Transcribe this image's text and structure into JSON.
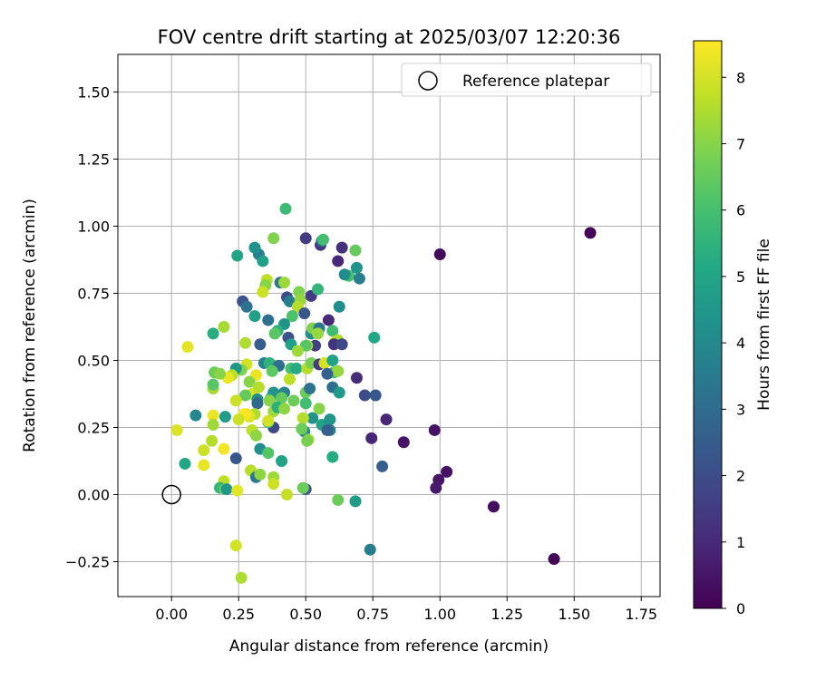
{
  "chart_data": {
    "type": "scatter",
    "title": "FOV centre drift starting at 2025/03/07 12:20:36",
    "xlabel": "Angular distance from reference (arcmin)",
    "ylabel": "Rotation from reference (arcmin)",
    "xlim": [
      -0.2,
      1.82
    ],
    "ylim": [
      -0.38,
      1.64
    ],
    "xticks": [
      0.0,
      0.25,
      0.5,
      0.75,
      1.0,
      1.25,
      1.5,
      1.75
    ],
    "xtick_labels": [
      "0.00",
      "0.25",
      "0.50",
      "0.75",
      "1.00",
      "1.25",
      "1.50",
      "1.75"
    ],
    "yticks": [
      -0.25,
      0.0,
      0.25,
      0.5,
      0.75,
      1.0,
      1.25,
      1.5
    ],
    "ytick_labels": [
      "−0.25",
      "0.00",
      "0.25",
      "0.50",
      "0.75",
      "1.00",
      "1.25",
      "1.50"
    ],
    "grid": true,
    "legend": {
      "position": "upper-right",
      "entries": [
        "Reference platepar"
      ]
    },
    "reference_point": {
      "x": 0.0,
      "y": 0.0,
      "label": "Reference platepar"
    },
    "colorbar": {
      "label": "Hours from first FF file",
      "colormap": "viridis",
      "range": [
        0,
        8.55
      ],
      "ticks": [
        0,
        1,
        2,
        3,
        4,
        5,
        6,
        7,
        8
      ],
      "tick_labels": [
        "0",
        "1",
        "2",
        "3",
        "4",
        "5",
        "6",
        "7",
        "8"
      ]
    },
    "series": [
      {
        "columns": [
          "x",
          "y",
          "hours"
        ],
        "points": [
          [
            1.56,
            0.975,
            0.1
          ],
          [
            1.0,
            0.895,
            0.2
          ],
          [
            1.425,
            -0.24,
            0.1
          ],
          [
            1.2,
            -0.045,
            0.3
          ],
          [
            1.025,
            0.085,
            0.4
          ],
          [
            0.995,
            0.055,
            0.5
          ],
          [
            0.985,
            0.025,
            0.6
          ],
          [
            0.98,
            0.24,
            0.4
          ],
          [
            0.865,
            0.195,
            0.5
          ],
          [
            0.8,
            0.28,
            1.0
          ],
          [
            0.745,
            0.21,
            0.9
          ],
          [
            0.69,
            0.435,
            1.1
          ],
          [
            0.72,
            0.37,
            2.0
          ],
          [
            0.76,
            0.37,
            2.3
          ],
          [
            0.785,
            0.105,
            2.5
          ],
          [
            0.74,
            -0.205,
            3.6
          ],
          [
            0.685,
            -0.025,
            4.7
          ],
          [
            0.62,
            -0.02,
            6.6
          ],
          [
            0.56,
            0.26,
            4.9
          ],
          [
            0.59,
            0.28,
            4.4
          ],
          [
            0.6,
            0.14,
            5.2
          ],
          [
            0.59,
            0.24,
            3.7
          ],
          [
            0.58,
            0.24,
            2.6
          ],
          [
            0.5,
            0.02,
            2.3
          ],
          [
            0.49,
            0.025,
            6.6
          ],
          [
            0.43,
            0.0,
            7.8
          ],
          [
            0.495,
            0.235,
            3.9
          ],
          [
            0.525,
            0.285,
            4.3
          ],
          [
            0.66,
            0.815,
            6.0
          ],
          [
            0.645,
            0.82,
            4.1
          ],
          [
            0.7,
            0.805,
            3.6
          ],
          [
            0.69,
            0.845,
            4.4
          ],
          [
            0.685,
            0.91,
            6.5
          ],
          [
            0.635,
            0.92,
            1.2
          ],
          [
            0.62,
            0.87,
            1.0
          ],
          [
            0.555,
            0.93,
            1.4
          ],
          [
            0.56,
            0.945,
            3.0
          ],
          [
            0.565,
            0.95,
            6.0
          ],
          [
            0.5,
            0.955,
            1.5
          ],
          [
            0.425,
            1.065,
            5.8
          ],
          [
            0.325,
            0.895,
            3.6
          ],
          [
            0.31,
            0.92,
            4.3
          ],
          [
            0.34,
            0.87,
            4.8
          ],
          [
            0.38,
            0.955,
            6.9
          ],
          [
            0.245,
            0.89,
            5.0
          ],
          [
            0.405,
            0.79,
            3.4
          ],
          [
            0.42,
            0.79,
            7.3
          ],
          [
            0.355,
            0.8,
            7.7
          ],
          [
            0.35,
            0.78,
            7.0
          ],
          [
            0.34,
            0.755,
            7.9
          ],
          [
            0.43,
            0.735,
            2.0
          ],
          [
            0.44,
            0.72,
            3.6
          ],
          [
            0.475,
            0.755,
            6.9
          ],
          [
            0.48,
            0.725,
            7.2
          ],
          [
            0.47,
            0.7,
            7.6
          ],
          [
            0.52,
            0.74,
            1.5
          ],
          [
            0.545,
            0.765,
            5.6
          ],
          [
            0.585,
            0.65,
            1.0
          ],
          [
            0.625,
            0.7,
            4.1
          ],
          [
            0.265,
            0.72,
            2.2
          ],
          [
            0.28,
            0.7,
            3.2
          ],
          [
            0.31,
            0.665,
            4.8
          ],
          [
            0.36,
            0.65,
            3.1
          ],
          [
            0.45,
            0.665,
            6.1
          ],
          [
            0.495,
            0.675,
            2.3
          ],
          [
            0.42,
            0.635,
            4.4
          ],
          [
            0.395,
            0.61,
            5.4
          ],
          [
            0.385,
            0.6,
            6.3
          ],
          [
            0.52,
            0.6,
            4.2
          ],
          [
            0.525,
            0.62,
            6.9
          ],
          [
            0.55,
            0.62,
            3.4
          ],
          [
            0.545,
            0.6,
            7.2
          ],
          [
            0.6,
            0.61,
            5.9
          ],
          [
            0.61,
            0.57,
            8.2
          ],
          [
            0.62,
            0.575,
            7.5
          ],
          [
            0.605,
            0.56,
            1.3
          ],
          [
            0.635,
            0.56,
            1.9
          ],
          [
            0.535,
            0.555,
            1.6
          ],
          [
            0.505,
            0.555,
            7.7
          ],
          [
            0.5,
            0.555,
            6.3
          ],
          [
            0.435,
            0.585,
            2.1
          ],
          [
            0.445,
            0.56,
            4.8
          ],
          [
            0.47,
            0.535,
            7.3
          ],
          [
            0.33,
            0.56,
            2.5
          ],
          [
            0.275,
            0.565,
            7.5
          ],
          [
            0.155,
            0.6,
            5.3
          ],
          [
            0.195,
            0.625,
            7.4
          ],
          [
            0.06,
            0.55,
            8.2
          ],
          [
            0.345,
            0.49,
            3.8
          ],
          [
            0.365,
            0.49,
            5.5
          ],
          [
            0.4,
            0.48,
            3.1
          ],
          [
            0.375,
            0.46,
            6.4
          ],
          [
            0.445,
            0.47,
            6.0
          ],
          [
            0.465,
            0.47,
            5.2
          ],
          [
            0.505,
            0.47,
            7.6
          ],
          [
            0.52,
            0.49,
            6.8
          ],
          [
            0.55,
            0.485,
            1.5
          ],
          [
            0.57,
            0.49,
            8.0
          ],
          [
            0.6,
            0.5,
            4.9
          ],
          [
            0.605,
            0.455,
            6.1
          ],
          [
            0.62,
            0.46,
            7.2
          ],
          [
            0.58,
            0.45,
            2.6
          ],
          [
            0.6,
            0.4,
            3.1
          ],
          [
            0.625,
            0.38,
            4.6
          ],
          [
            0.755,
            0.585,
            5.1
          ],
          [
            0.28,
            0.485,
            8.0
          ],
          [
            0.26,
            0.465,
            6.9
          ],
          [
            0.24,
            0.47,
            4.5
          ],
          [
            0.225,
            0.445,
            7.7
          ],
          [
            0.21,
            0.435,
            8.3
          ],
          [
            0.16,
            0.455,
            6.6
          ],
          [
            0.18,
            0.45,
            7.0
          ],
          [
            0.155,
            0.395,
            7.4
          ],
          [
            0.155,
            0.41,
            6.3
          ],
          [
            0.315,
            0.445,
            8.3
          ],
          [
            0.29,
            0.42,
            7.0
          ],
          [
            0.3,
            0.375,
            8.0
          ],
          [
            0.325,
            0.4,
            7.6
          ],
          [
            0.275,
            0.37,
            6.5
          ],
          [
            0.24,
            0.35,
            7.9
          ],
          [
            0.32,
            0.355,
            4.2
          ],
          [
            0.32,
            0.34,
            2.9
          ],
          [
            0.37,
            0.36,
            5.8
          ],
          [
            0.38,
            0.38,
            4.4
          ],
          [
            0.365,
            0.35,
            7.0
          ],
          [
            0.42,
            0.38,
            3.8
          ],
          [
            0.41,
            0.36,
            6.5
          ],
          [
            0.44,
            0.43,
            7.7
          ],
          [
            0.455,
            0.35,
            6.6
          ],
          [
            0.5,
            0.38,
            6.6
          ],
          [
            0.5,
            0.34,
            5.9
          ],
          [
            0.515,
            0.395,
            3.2
          ],
          [
            0.55,
            0.32,
            7.0
          ],
          [
            0.38,
            0.31,
            7.3
          ],
          [
            0.395,
            0.325,
            5.4
          ],
          [
            0.42,
            0.32,
            7.1
          ],
          [
            0.49,
            0.285,
            7.6
          ],
          [
            0.51,
            0.205,
            7.4
          ],
          [
            0.505,
            0.2,
            6.8
          ],
          [
            0.485,
            0.245,
            6.6
          ],
          [
            0.38,
            0.25,
            1.9
          ],
          [
            0.36,
            0.27,
            6.0
          ],
          [
            0.36,
            0.275,
            8.0
          ],
          [
            0.31,
            0.3,
            7.5
          ],
          [
            0.29,
            0.29,
            8.1
          ],
          [
            0.3,
            0.24,
            7.7
          ],
          [
            0.315,
            0.22,
            7.1
          ],
          [
            0.28,
            0.3,
            8.3
          ],
          [
            0.27,
            0.3,
            8.5
          ],
          [
            0.25,
            0.28,
            7.9
          ],
          [
            0.2,
            0.29,
            4.7
          ],
          [
            0.155,
            0.295,
            8.3
          ],
          [
            0.155,
            0.26,
            7.3
          ],
          [
            0.15,
            0.2,
            7.6
          ],
          [
            0.09,
            0.295,
            3.9
          ],
          [
            0.02,
            0.24,
            8.1
          ],
          [
            0.12,
            0.165,
            7.9
          ],
          [
            0.195,
            0.17,
            8.4
          ],
          [
            0.24,
            0.135,
            2.3
          ],
          [
            0.33,
            0.17,
            4.1
          ],
          [
            0.36,
            0.155,
            6.2
          ],
          [
            0.41,
            0.125,
            4.9
          ],
          [
            0.05,
            0.115,
            5.1
          ],
          [
            0.12,
            0.11,
            8.3
          ],
          [
            0.295,
            0.09,
            7.6
          ],
          [
            0.315,
            0.065,
            3.4
          ],
          [
            0.33,
            0.075,
            7.1
          ],
          [
            0.38,
            0.065,
            7.3
          ],
          [
            0.38,
            0.04,
            7.9
          ],
          [
            0.195,
            0.05,
            7.7
          ],
          [
            0.18,
            0.025,
            5.6
          ],
          [
            0.2,
            0.02,
            6.9
          ],
          [
            0.205,
            0.02,
            4.5
          ],
          [
            0.245,
            0.015,
            8.2
          ],
          [
            0.24,
            -0.19,
            8.0
          ],
          [
            0.26,
            -0.31,
            7.5
          ]
        ]
      }
    ]
  }
}
